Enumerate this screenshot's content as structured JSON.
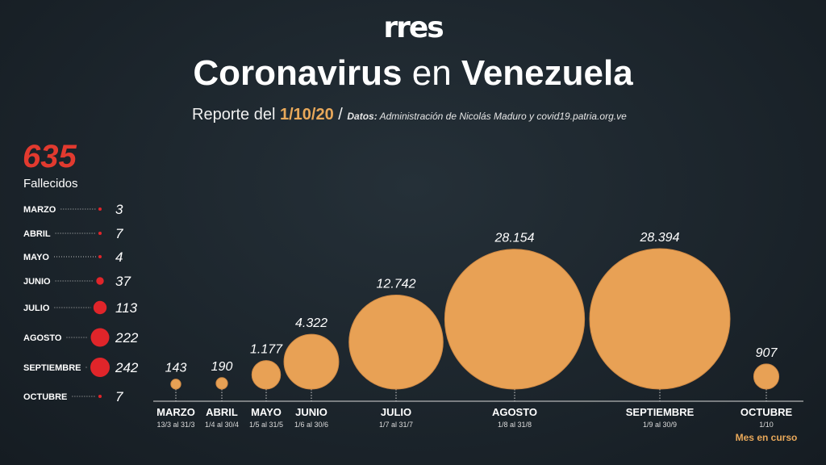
{
  "header": {
    "logo": "rres",
    "title_part1": "Coronavirus",
    "title_part2": "en",
    "title_part3": "Venezuela",
    "report_prefix": "Reporte del",
    "report_date": "1/10/20",
    "separator": "/",
    "source_label": "Datos:",
    "source_text": "Administración de Nicolás Maduro y covid19.patria.org.ve"
  },
  "deaths": {
    "total": "635",
    "label": "Fallecidos"
  },
  "colors": {
    "bubble": "#e8a155",
    "death_dot": "#e0252a",
    "accent_date": "#e8a85a"
  },
  "chart_data": [
    {
      "type": "scatter",
      "encoding": "bubble",
      "series_label": "",
      "categories": [
        "MARZO",
        "ABRIL",
        "MAYO",
        "JUNIO",
        "JULIO",
        "AGOSTO",
        "SEPTIEMBRE",
        "OCTUBRE"
      ],
      "ranges": [
        "13/3 al 31/3",
        "1/4 al 30/4",
        "1/5 al 31/5",
        "1/6 al 30/6",
        "1/7 al 31/7",
        "1/8 al 31/8",
        "1/9 al 30/9",
        "1/10"
      ],
      "values": [
        143,
        190,
        1177,
        4322,
        12742,
        28154,
        28394,
        907
      ],
      "value_labels": [
        "143",
        "190",
        "1.177",
        "4.322",
        "12.742",
        "28.154",
        "28.394",
        "907"
      ],
      "annotation": "Mes en curso"
    },
    {
      "type": "scatter",
      "encoding": "dot",
      "categories": [
        "MARZO",
        "ABRIL",
        "MAYO",
        "JUNIO",
        "JULIO",
        "AGOSTO",
        "SEPTIEMBRE",
        "OCTUBRE"
      ],
      "values": [
        3,
        7,
        4,
        37,
        113,
        222,
        242,
        7
      ],
      "value_labels": [
        "3",
        "7",
        "4",
        "37",
        "113",
        "222",
        "242",
        "7"
      ]
    }
  ]
}
